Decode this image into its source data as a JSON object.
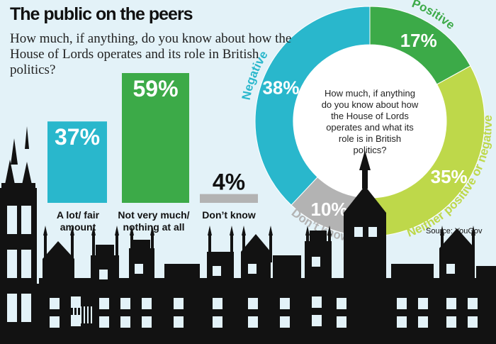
{
  "header": {
    "title": "The public on the peers",
    "subtitle": "How much, if anything, do you know about how the House of Lords operates and its role in British politics?"
  },
  "source": "Source: YouGov",
  "colors": {
    "teal": "#29b7cc",
    "green": "#3caa48",
    "lime": "#bed84a",
    "grey": "#b3b3b3",
    "background": "#e3f2f8",
    "silhouette": "#121212"
  },
  "chart_data": [
    {
      "type": "bar",
      "categories": [
        "A lot/ fair amount",
        "Not very much/ nothing at all",
        "Don’t know"
      ],
      "values": [
        37,
        59,
        4
      ],
      "value_labels": [
        "37%",
        "59%",
        "4%"
      ],
      "ylim": [
        0,
        59
      ]
    },
    {
      "type": "pie",
      "center_text": "How much, if anything do you know about how the House of Lords operates and what its role is in British politics?",
      "slices": [
        {
          "label": "Positive",
          "value": 17,
          "value_label": "17%",
          "color": "#3caa48"
        },
        {
          "label": "Neither positive or negative",
          "value": 35,
          "value_label": "35%",
          "color": "#bed84a"
        },
        {
          "label": "Don’t know",
          "value": 10,
          "value_label": "10%",
          "color": "#b3b3b3"
        },
        {
          "label": "Negative",
          "value": 38,
          "value_label": "38%",
          "color": "#29b7cc"
        }
      ]
    }
  ]
}
